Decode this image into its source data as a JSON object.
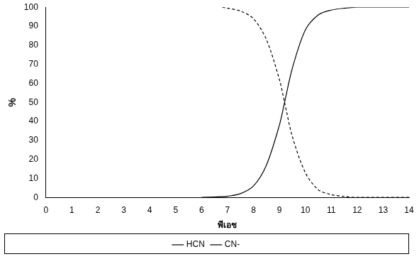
{
  "chart_data": {
    "type": "line",
    "x_label": "พีเอช",
    "y_label": "%",
    "x": [
      6,
      6.5,
      6.8,
      7,
      7.5,
      8,
      8.5,
      9,
      9.2,
      9.5,
      10,
      10.5,
      11,
      11.5,
      12,
      13,
      14
    ],
    "series": [
      {
        "name": "HCN",
        "color": "#000000",
        "line_style": "dashed",
        "values": [
          null,
          null,
          100,
          99.5,
          98,
          94,
          83,
          62,
          50,
          32,
          13,
          4,
          1.5,
          0.5,
          0,
          0,
          0
        ]
      },
      {
        "name": "CN-",
        "color": "#000000",
        "line_style": "solid",
        "values": [
          0,
          0.2,
          0.4,
          0.6,
          2,
          6,
          17,
          38,
          50,
          68,
          88,
          96,
          98.5,
          99.5,
          100,
          100,
          100
        ]
      }
    ],
    "xlim": [
      0,
      14
    ],
    "xticks": [
      0,
      1,
      2,
      3,
      4,
      5,
      6,
      7,
      8,
      9,
      10,
      11,
      12,
      13,
      14
    ],
    "ylim": [
      0,
      100
    ],
    "yticks": [
      0,
      10,
      20,
      30,
      40,
      50,
      60,
      70,
      80,
      90,
      100
    ],
    "grid": false,
    "legend": "bottom"
  }
}
